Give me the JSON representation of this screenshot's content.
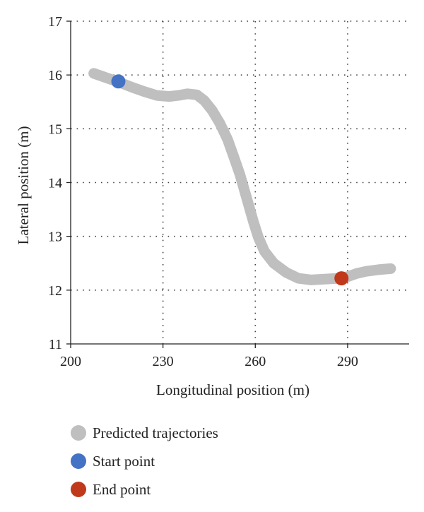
{
  "chart_data": {
    "type": "line",
    "xlabel": "Longitudinal position (m)",
    "ylabel": "Lateral position (m)",
    "xlim": [
      200,
      310
    ],
    "ylim": [
      11,
      17
    ],
    "x_ticks": [
      200,
      230,
      260,
      290
    ],
    "y_ticks": [
      11,
      12,
      13,
      14,
      15,
      16,
      17
    ],
    "grid": "dotted",
    "legend_position": "bottom",
    "series": [
      {
        "name": "Predicted trajectories",
        "color": "#bfbfbf",
        "x": [
          207.5,
          212,
          216,
          220,
          224,
          228,
          232,
          235,
          238,
          241,
          243.5,
          246,
          248.5,
          251,
          253,
          255,
          256.5,
          258,
          259.5,
          261,
          263,
          266,
          270,
          274,
          278,
          281,
          284,
          287,
          290,
          293,
          296,
          300,
          304
        ],
        "y": [
          16.03,
          15.94,
          15.86,
          15.77,
          15.69,
          15.62,
          15.6,
          15.62,
          15.65,
          15.63,
          15.52,
          15.34,
          15.1,
          14.8,
          14.48,
          14.15,
          13.85,
          13.55,
          13.25,
          12.98,
          12.72,
          12.5,
          12.33,
          12.22,
          12.19,
          12.2,
          12.21,
          12.22,
          12.25,
          12.31,
          12.35,
          12.38,
          12.4
        ]
      },
      {
        "name": "Start point",
        "color": "#4472c4",
        "x": [
          215.5
        ],
        "y": [
          15.88
        ]
      },
      {
        "name": "End point",
        "color": "#c0391b",
        "x": [
          288
        ],
        "y": [
          12.22
        ]
      }
    ]
  }
}
